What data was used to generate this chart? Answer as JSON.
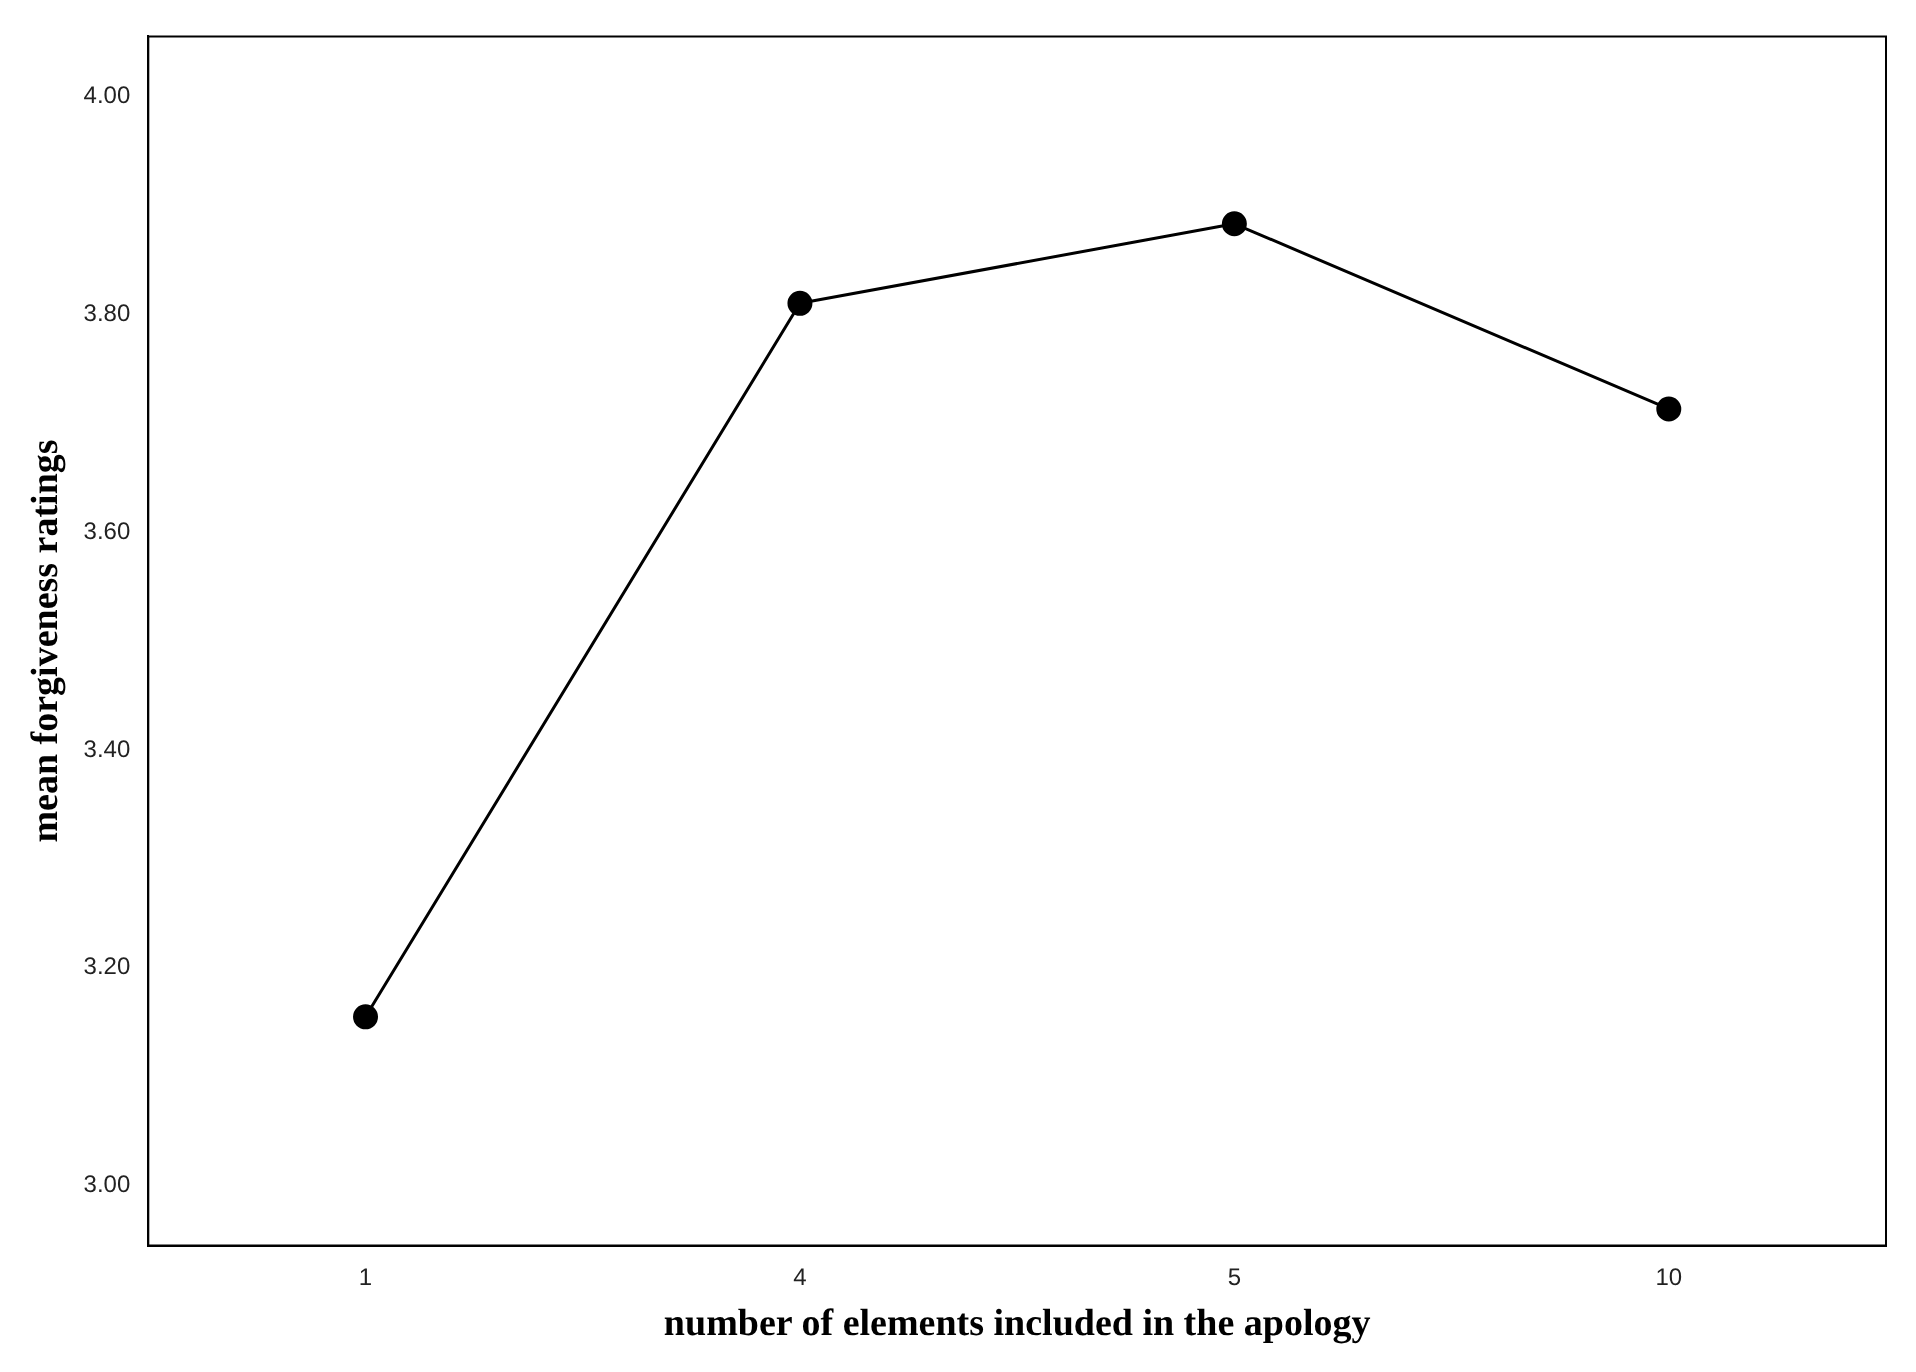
{
  "chart_data": {
    "type": "line",
    "xlabel": "number of elements included in the apology",
    "ylabel": "mean forgiveness ratings",
    "categories": [
      "1",
      "4",
      "5",
      "10"
    ],
    "series": [
      {
        "color": "#000000",
        "values": [
          3.155,
          3.81,
          3.883,
          3.713
        ]
      }
    ],
    "ylim": [
      2.945,
      4.055
    ],
    "yticks": [
      {
        "value": 3,
        "label": "3.00"
      },
      {
        "value": 3.2,
        "label": "3.20"
      },
      {
        "value": 3.4,
        "label": "3.40"
      },
      {
        "value": 3.6,
        "label": "3.60"
      },
      {
        "value": 3.8,
        "label": "3.80"
      },
      {
        "value": 4,
        "label": "4.00"
      }
    ],
    "grid": false,
    "legend": false,
    "marker": "circle",
    "line_style": "solid"
  }
}
